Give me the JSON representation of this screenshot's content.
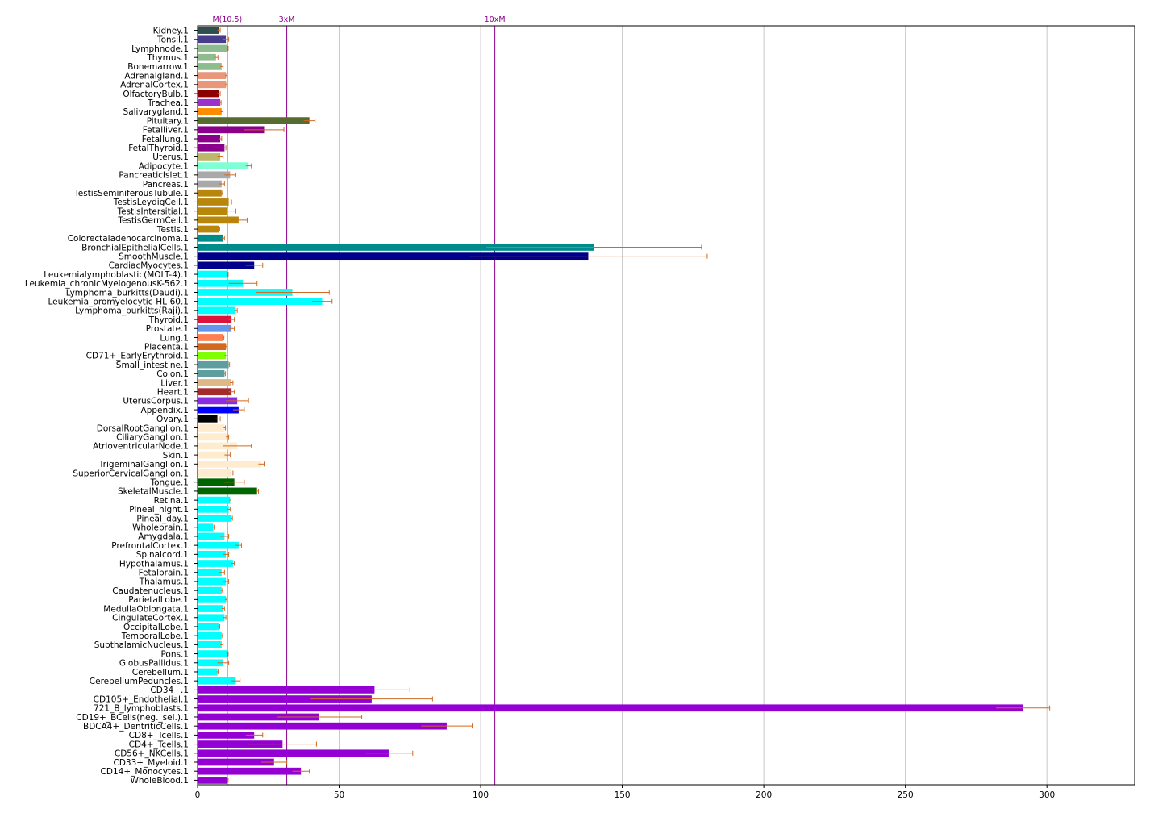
{
  "chart_data": {
    "type": "bar",
    "orientation": "horizontal",
    "title": "",
    "xlabel": "",
    "ylabel": "",
    "xlim": [
      0,
      331
    ],
    "xticks": [
      0,
      50,
      100,
      150,
      200,
      250,
      300
    ],
    "grid": "vertical gridlines",
    "error_bar_color": "#d2691e",
    "reference_lines": [
      {
        "label": "M(10.5)",
        "value": 10.5,
        "color": "#8b008b"
      },
      {
        "label": "3xM",
        "value": 31.5,
        "color": "#8b008b"
      },
      {
        "label": "10xM",
        "value": 105,
        "color": "#8b008b"
      }
    ],
    "categories": [
      "Kidney.1",
      "Tonsil.1",
      "Lymphnode.1",
      "Thymus.1",
      "Bonemarrow.1",
      "Adrenalgland.1",
      "AdrenalCortex.1",
      "OlfactoryBulb.1",
      "Trachea.1",
      "Salivarygland.1",
      "Pituitary.1",
      "Fetalliver.1",
      "Fetallung.1",
      "FetalThyroid.1",
      "Uterus.1",
      "Adipocyte.1",
      "PancreaticIslet.1",
      "Pancreas.1",
      "TestisSeminiferousTubule.1",
      "TestisLeydigCell.1",
      "TestisIntersitial.1",
      "TestisGermCell.1",
      "Testis.1",
      "Colorectaladenocarcinoma.1",
      "BronchialEpithelialCells.1",
      "SmoothMuscle.1",
      "CardiacMyocytes.1",
      "Leukemialymphoblastic(MOLT-4).1",
      "Leukemia_chronicMyelogenousK-562.1",
      "Lymphoma_burkitts(Daudi).1",
      "Leukemia_promyelocytic-HL-60.1",
      "Lymphoma_burkitts(Raji).1",
      "Thyroid.1",
      "Prostate.1",
      "Lung.1",
      "Placenta.1",
      "CD71+_EarlyErythroid.1",
      "Small_intestine.1",
      "Colon.1",
      "Liver.1",
      "Heart.1",
      "UterusCorpus.1",
      "Appendix.1",
      "Ovary.1",
      "DorsalRootGanglion.1",
      "CiliaryGanglion.1",
      "AtrioventricularNode.1",
      "Skin.1",
      "TrigeminalGanglion.1",
      "SuperiorCervicalGanglion.1",
      "Tongue.1",
      "SkeletalMuscle.1",
      "Retina.1",
      "Pineal_night.1",
      "Pineal_day.1",
      "Wholebrain.1",
      "Amygdala.1",
      "PrefrontalCortex.1",
      "Spinalcord.1",
      "Hypothalamus.1",
      "Fetalbrain.1",
      "Thalamus.1",
      "Caudatenucleus.1",
      "ParietalLobe.1",
      "MedullaOblongata.1",
      "CingulateCortex.1",
      "OccipitalLobe.1",
      "TemporalLobe.1",
      "SubthalamicNucleus.1",
      "Pons.1",
      "GlobusPallidus.1",
      "Cerebellum.1",
      "CerebellumPeduncles.1",
      "CD34+.1",
      "CD105+_Endothelial.1",
      "721_B_lymphoblasts.1",
      "CD19+_BCells(neg._sel.).1",
      "BDCA4+_DentriticCells.1",
      "CD8+_Tcells.1",
      "CD4+_Tcells.1",
      "CD56+_NKCells.1",
      "CD33+_Myeloid.1",
      "CD14+_Monocytes.1",
      "WholeBlood.1"
    ],
    "values": [
      7.5,
      10,
      10.5,
      6.5,
      8.5,
      10,
      10,
      7.5,
      8,
      8.5,
      39.5,
      23.5,
      8,
      9.5,
      8,
      18,
      11.5,
      8.5,
      8.5,
      11,
      10.5,
      14.5,
      7.5,
      9,
      140,
      138,
      20,
      10.5,
      16,
      33.5,
      44,
      13.5,
      12,
      12,
      9,
      10,
      10,
      11,
      9.5,
      12,
      12,
      14,
      14.5,
      7,
      9.5,
      10.5,
      14,
      10.5,
      22.5,
      12,
      13,
      21,
      11.5,
      11,
      12,
      5.5,
      9.5,
      14.5,
      10,
      12.5,
      8.5,
      10,
      8.5,
      10,
      9,
      9.5,
      7.5,
      8.5,
      8.5,
      10.5,
      9,
      7,
      13.5,
      62.5,
      61.5,
      291.5,
      43,
      88,
      20,
      30,
      67.5,
      27,
      36.5,
      10.5
    ],
    "errors": [
      0.5,
      1,
      0.3,
      0.7,
      0.5,
      0.3,
      0.3,
      0.5,
      0.3,
      0.5,
      2,
      7,
      0.5,
      0.5,
      1,
      1,
      2,
      1,
      0.3,
      1,
      3,
      3,
      0.3,
      0.5,
      38,
      42,
      3,
      0.3,
      5,
      13,
      3.5,
      0.5,
      1,
      1,
      0.3,
      0.3,
      0.5,
      0.3,
      0.3,
      0.5,
      1,
      4,
      2,
      1,
      0.3,
      0.5,
      5,
      1,
      1,
      0.5,
      3.5,
      0.5,
      0.3,
      0.5,
      0.3,
      0.3,
      1.5,
      1,
      1,
      0.5,
      1,
      1,
      0.3,
      0.3,
      0.5,
      0.5,
      0.3,
      0.3,
      0.5,
      0.3,
      2,
      0.3,
      1.5,
      12.5,
      21.5,
      9.5,
      15,
      9,
      3,
      12,
      8.5,
      4.5,
      3,
      0.3
    ],
    "colors": [
      "#2f4f4f",
      "#483d8b",
      "#8fbc8f",
      "#8fbc8f",
      "#8fbc8f",
      "#e9967a",
      "#e9967a",
      "#8b0000",
      "#9932cc",
      "#ff8c00",
      "#556b2f",
      "#8b008b",
      "#8b008b",
      "#8b008b",
      "#bdb76b",
      "#7fffd4",
      "#a9a9a9",
      "#a9a9a9",
      "#b8860b",
      "#b8860b",
      "#b8860b",
      "#b8860b",
      "#b8860b",
      "#008b8b",
      "#008b8b",
      "#00008b",
      "#00008b",
      "#00ffff",
      "#00ffff",
      "#00ffff",
      "#00ffff",
      "#00ffff",
      "#dc143c",
      "#6495ed",
      "#ff7f50",
      "#d2691e",
      "#7fff00",
      "#5f9ea0",
      "#5f9ea0",
      "#deb887",
      "#a52a2a",
      "#8a2be2",
      "#0000ff",
      "#000000",
      "#ffebcd",
      "#ffebcd",
      "#ffebcd",
      "#ffebcd",
      "#ffebcd",
      "#ffebcd",
      "#006400",
      "#006400",
      "#00ffff",
      "#00ffff",
      "#00ffff",
      "#00ffff",
      "#00ffff",
      "#00ffff",
      "#00ffff",
      "#00ffff",
      "#00ffff",
      "#00ffff",
      "#00ffff",
      "#00ffff",
      "#00ffff",
      "#00ffff",
      "#00ffff",
      "#00ffff",
      "#00ffff",
      "#00ffff",
      "#00ffff",
      "#00ffff",
      "#00ffff",
      "#9400d3",
      "#9400d3",
      "#9400d3",
      "#9400d3",
      "#9400d3",
      "#9400d3",
      "#9400d3",
      "#9400d3",
      "#9400d3",
      "#9400d3",
      "#9400d3"
    ]
  }
}
